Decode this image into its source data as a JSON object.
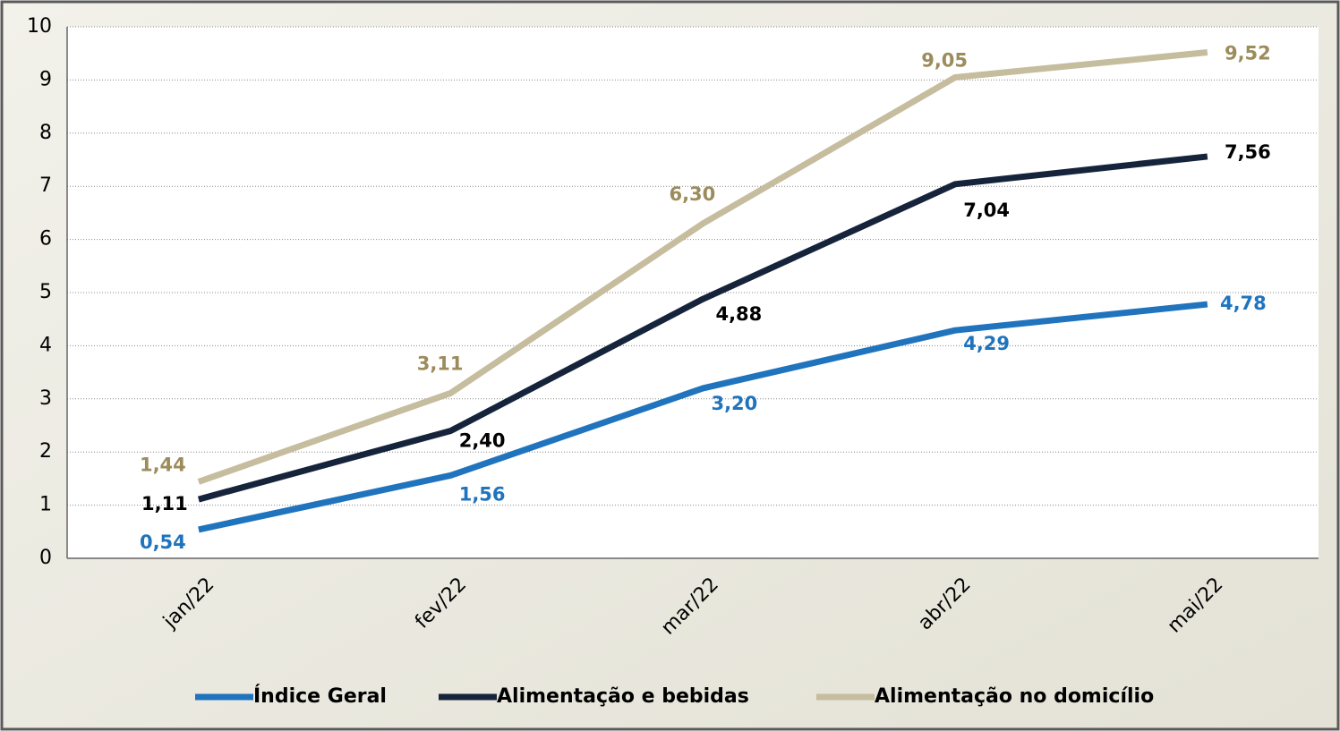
{
  "chart_data": {
    "type": "line",
    "categories": [
      "jan/22",
      "fev/22",
      "mar/22",
      "abr/22",
      "mai/22"
    ],
    "series": [
      {
        "name": "Índice Geral",
        "color": "#1f74bd",
        "label_color": "#1f74bd",
        "values": [
          0.54,
          1.56,
          3.2,
          4.29,
          4.78
        ],
        "value_labels": [
          "0,54",
          "1,56",
          "3,20",
          "4,29",
          "4,78"
        ]
      },
      {
        "name": "Alimentação e bebidas",
        "color": "#16243b",
        "label_color": "#000000",
        "values": [
          1.11,
          2.4,
          4.88,
          7.04,
          7.56
        ],
        "value_labels": [
          "1,11",
          "2,40",
          "4,88",
          "7,04",
          "7,56"
        ]
      },
      {
        "name": "Alimentação no domicílio",
        "color": "#c6bd9f",
        "label_color": "#9c8c5c",
        "values": [
          1.44,
          3.11,
          6.3,
          9.05,
          9.52
        ],
        "value_labels": [
          "1,44",
          "3,11",
          "6,30",
          "9,05",
          "9,52"
        ]
      }
    ],
    "ylim": [
      0,
      10
    ],
    "yticks": [
      0,
      1,
      2,
      3,
      4,
      5,
      6,
      7,
      8,
      9,
      10
    ],
    "grid": true,
    "legend": "bottom"
  }
}
